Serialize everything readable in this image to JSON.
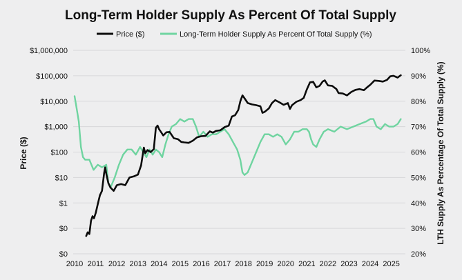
{
  "chart_data": {
    "type": "line",
    "title": "Long-Term Holder Supply As Percent Of Total Supply",
    "legend": [
      "Price ($)",
      "Long-Term Holder Supply As Percent Of Total Supply (%)"
    ],
    "legend_position": "top",
    "xlabel": "",
    "ylabel_left": "Price ($)",
    "ylabel_right": "LTH Supply As Percentage Of Total Supply (%)",
    "x_ticks": [
      "2010",
      "2011",
      "2012",
      "2013",
      "2014",
      "2015",
      "2016",
      "2017",
      "2018",
      "2019",
      "2020",
      "2021",
      "2022",
      "2023",
      "2024",
      "2025"
    ],
    "y_left_ticks": [
      "$1,000,000",
      "$100,000",
      "$10,000",
      "$1,000",
      "$100",
      "$10",
      "$1",
      "$0",
      "$0"
    ],
    "y_right_ticks": [
      "100%",
      "90%",
      "80%",
      "70%",
      "60%",
      "50%",
      "40%",
      "30%",
      "20%"
    ],
    "xlim": [
      2010,
      2025.6
    ],
    "ylim_left_log10": [
      -2,
      6
    ],
    "ylim_right": [
      20,
      100
    ],
    "grid": true,
    "series": [
      {
        "name": "Price ($)",
        "axis": "left",
        "scale": "log",
        "color": "#0b0b0b",
        "x": [
          2010.55,
          2010.62,
          2010.7,
          2010.78,
          2010.85,
          2010.92,
          2011.0,
          2011.1,
          2011.2,
          2011.3,
          2011.4,
          2011.45,
          2011.5,
          2011.6,
          2011.7,
          2011.85,
          2012.0,
          2012.2,
          2012.4,
          2012.6,
          2012.8,
          2013.0,
          2013.15,
          2013.28,
          2013.35,
          2013.45,
          2013.6,
          2013.75,
          2013.85,
          2013.93,
          2014.0,
          2014.1,
          2014.2,
          2014.35,
          2014.5,
          2014.7,
          2014.9,
          2015.05,
          2015.2,
          2015.4,
          2015.6,
          2015.8,
          2016.0,
          2016.2,
          2016.4,
          2016.55,
          2016.7,
          2016.9,
          2017.1,
          2017.3,
          2017.45,
          2017.6,
          2017.75,
          2017.85,
          2017.95,
          2018.05,
          2018.2,
          2018.4,
          2018.6,
          2018.8,
          2018.9,
          2019.0,
          2019.2,
          2019.35,
          2019.5,
          2019.7,
          2019.9,
          2020.1,
          2020.2,
          2020.3,
          2020.5,
          2020.7,
          2020.85,
          2021.0,
          2021.15,
          2021.3,
          2021.45,
          2021.6,
          2021.75,
          2021.85,
          2022.0,
          2022.2,
          2022.4,
          2022.5,
          2022.7,
          2022.9,
          2023.1,
          2023.3,
          2023.5,
          2023.7,
          2023.85,
          2024.0,
          2024.2,
          2024.4,
          2024.6,
          2024.8,
          2024.95,
          2025.1,
          2025.3,
          2025.45
        ],
        "values": [
          0.05,
          0.07,
          0.06,
          0.2,
          0.3,
          0.25,
          0.4,
          0.9,
          2,
          3,
          15,
          25,
          14,
          6,
          4,
          3,
          5,
          5.5,
          5,
          10,
          11,
          13,
          30,
          150,
          90,
          120,
          100,
          130,
          900,
          1100,
          800,
          600,
          450,
          600,
          620,
          350,
          320,
          250,
          240,
          230,
          280,
          380,
          420,
          430,
          650,
          580,
          680,
          720,
          950,
          1100,
          2500,
          2800,
          4500,
          10000,
          17000,
          13000,
          8500,
          7500,
          7000,
          6300,
          3500,
          3800,
          5200,
          8500,
          11000,
          9000,
          7200,
          8500,
          5000,
          7000,
          9500,
          11000,
          13500,
          29000,
          55000,
          58000,
          35000,
          40000,
          60000,
          66000,
          42000,
          40000,
          30000,
          21000,
          20000,
          17000,
          23000,
          28000,
          30000,
          27000,
          35000,
          44000,
          65000,
          63000,
          59000,
          69000,
          95000,
          100000,
          85000,
          105000
        ]
      },
      {
        "name": "Long-Term Holder Supply As Percent Of Total Supply (%)",
        "axis": "right",
        "scale": "linear",
        "color": "#6fd4a0",
        "x": [
          2010.0,
          2010.1,
          2010.2,
          2010.3,
          2010.4,
          2010.5,
          2010.7,
          2010.9,
          2011.1,
          2011.3,
          2011.5,
          2011.6,
          2011.7,
          2011.9,
          2012.1,
          2012.3,
          2012.5,
          2012.7,
          2012.9,
          2013.1,
          2013.25,
          2013.4,
          2013.55,
          2013.7,
          2013.85,
          2014.0,
          2014.15,
          2014.3,
          2014.45,
          2014.6,
          2014.8,
          2015.0,
          2015.2,
          2015.4,
          2015.6,
          2015.75,
          2015.9,
          2016.1,
          2016.3,
          2016.5,
          2016.7,
          2016.9,
          2017.1,
          2017.3,
          2017.5,
          2017.7,
          2017.85,
          2017.95,
          2018.05,
          2018.2,
          2018.4,
          2018.6,
          2018.8,
          2019.0,
          2019.2,
          2019.4,
          2019.6,
          2019.8,
          2020.0,
          2020.2,
          2020.4,
          2020.6,
          2020.8,
          2021.0,
          2021.1,
          2021.2,
          2021.3,
          2021.45,
          2021.6,
          2021.8,
          2022.0,
          2022.3,
          2022.6,
          2022.9,
          2023.2,
          2023.5,
          2023.8,
          2024.0,
          2024.15,
          2024.3,
          2024.5,
          2024.7,
          2024.9,
          2025.1,
          2025.3,
          2025.45
        ],
        "values": [
          82,
          77,
          72,
          62,
          58,
          57,
          57,
          53,
          55,
          54,
          55,
          48,
          46,
          50,
          55,
          59,
          61,
          61,
          59,
          62,
          60,
          58,
          61,
          59,
          61,
          60,
          58,
          63,
          67,
          70,
          71,
          73,
          72,
          73,
          73,
          70,
          66,
          68,
          66,
          67,
          67,
          68,
          69,
          67,
          64,
          61,
          57,
          52,
          51,
          52,
          56,
          60,
          64,
          67,
          67,
          66,
          67,
          66,
          63,
          65,
          68,
          68,
          69,
          69,
          68,
          65,
          63,
          62,
          65,
          68,
          69,
          68,
          70,
          69,
          70,
          71,
          72,
          73,
          73,
          70,
          69,
          71,
          70,
          70,
          71,
          73
        ]
      }
    ]
  }
}
